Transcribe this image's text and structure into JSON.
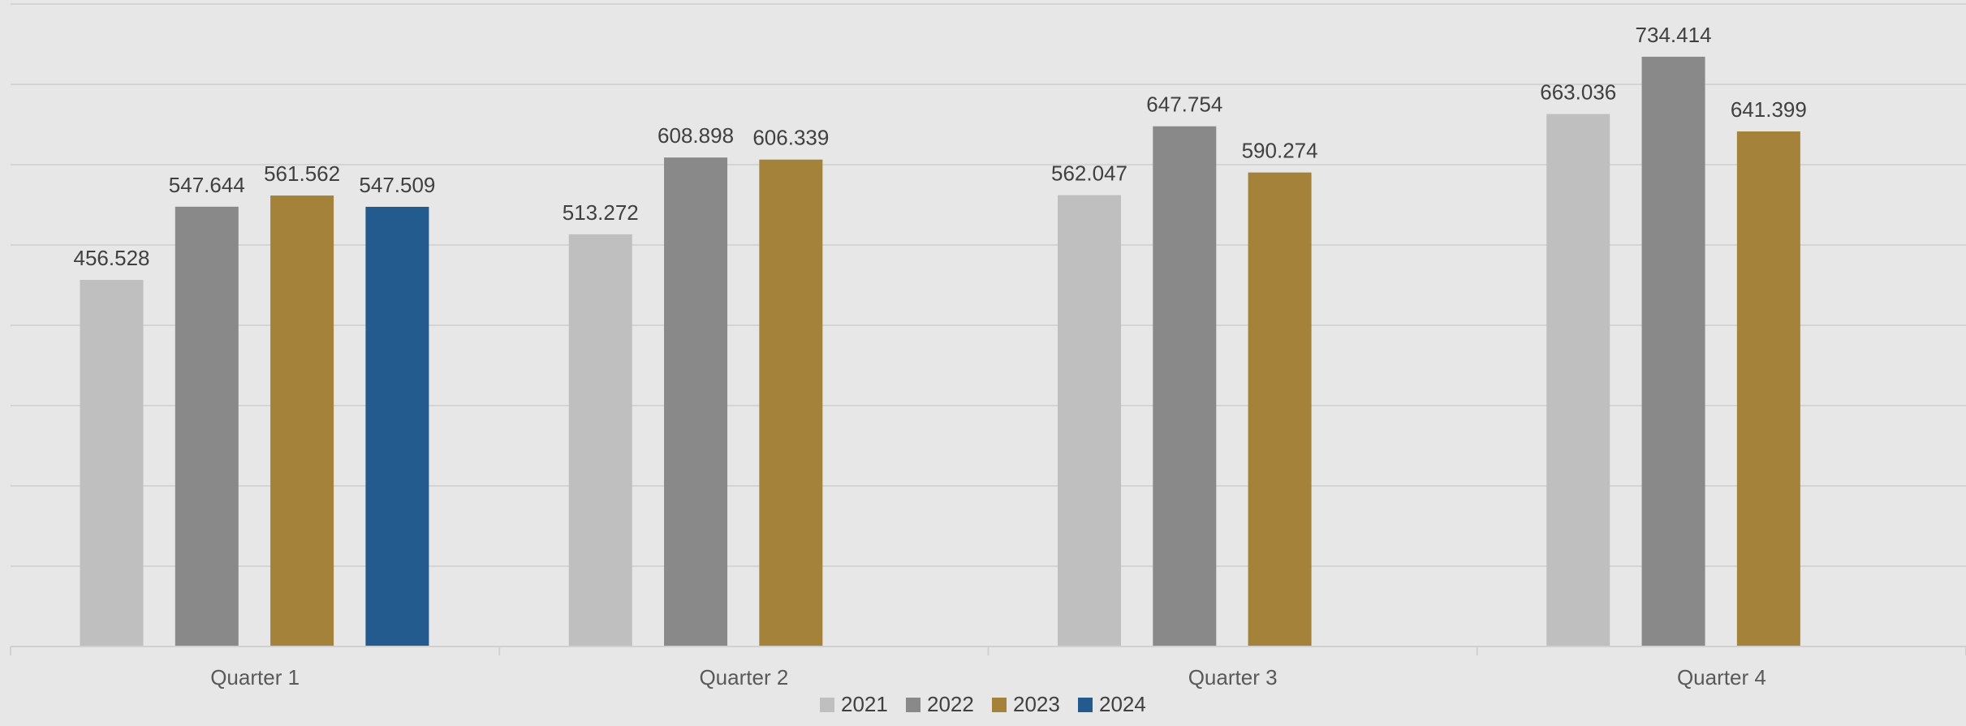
{
  "chart_data": {
    "type": "bar",
    "title": "",
    "xlabel": "",
    "ylabel": "",
    "categories": [
      "Quarter 1",
      "Quarter 2",
      "Quarter 3",
      "Quarter 4"
    ],
    "series": [
      {
        "name": "2021",
        "color": "#bfbfbf",
        "values": [
          456.528,
          513.272,
          562.047,
          663.036
        ]
      },
      {
        "name": "2022",
        "color": "#898989",
        "values": [
          547.644,
          608.898,
          647.754,
          734.414
        ]
      },
      {
        "name": "2023",
        "color": "#a5823a",
        "values": [
          561.562,
          606.339,
          590.274,
          641.399
        ]
      },
      {
        "name": "2024",
        "color": "#245b8e",
        "values": [
          547.509,
          null,
          null,
          null
        ]
      }
    ],
    "ylim": [
      0,
      800
    ],
    "yticks": [
      0,
      100,
      200,
      300,
      400,
      500,
      600,
      700,
      800
    ],
    "show_value_axis_labels": false,
    "grid": true,
    "legend_position": "bottom"
  }
}
